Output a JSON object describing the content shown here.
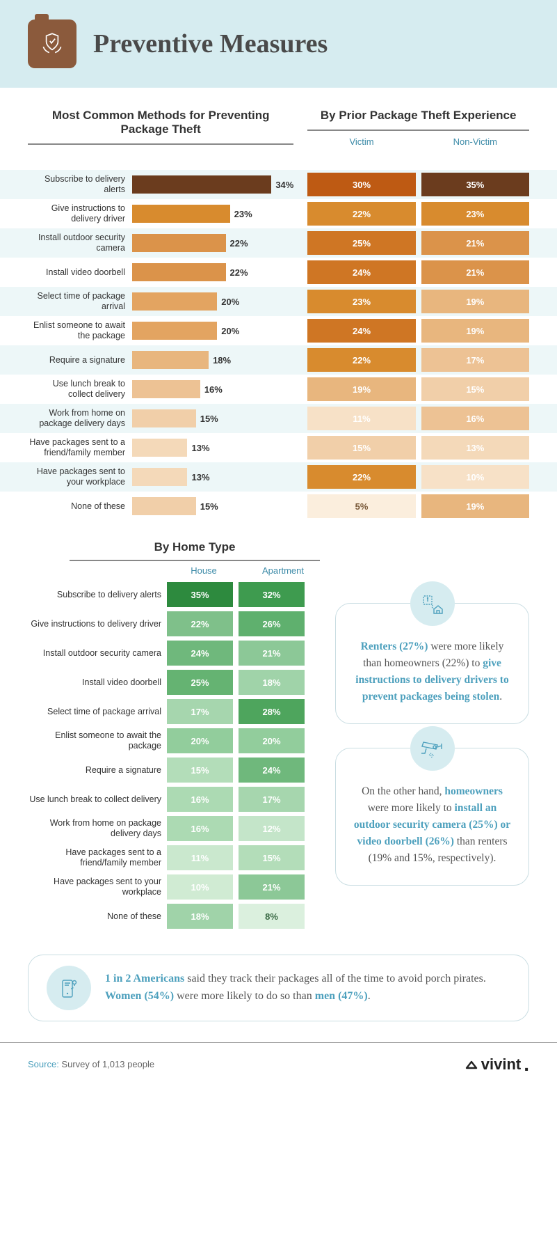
{
  "title": "Preventive Measures",
  "section1_title": "Most Common Methods for Preventing Package Theft",
  "section2_title": "By Prior Package Theft Experience",
  "sub_victim": "Victim",
  "sub_nonvictim": "Non-Victim",
  "bar_max_pct": 38,
  "rows": [
    {
      "label": "Subscribe to delivery alerts",
      "pct": 34,
      "bar_color": "#6b3c1e",
      "victim": 30,
      "victim_color": "#be5a13",
      "nonvictim": 35,
      "nonvictim_color": "#6b3c1e"
    },
    {
      "label": "Give instructions to delivery driver",
      "pct": 23,
      "bar_color": "#d88b2e",
      "victim": 22,
      "victim_color": "#d88b2e",
      "nonvictim": 23,
      "nonvictim_color": "#d88b2e"
    },
    {
      "label": "Install outdoor security camera",
      "pct": 22,
      "bar_color": "#db934a",
      "victim": 25,
      "victim_color": "#cf7624",
      "nonvictim": 21,
      "nonvictim_color": "#db934a"
    },
    {
      "label": "Install video doorbell",
      "pct": 22,
      "bar_color": "#db934a",
      "victim": 24,
      "victim_color": "#cf7624",
      "nonvictim": 21,
      "nonvictim_color": "#db934a"
    },
    {
      "label": "Select time of package arrival",
      "pct": 20,
      "bar_color": "#e3a461",
      "victim": 23,
      "victim_color": "#d88b2e",
      "nonvictim": 19,
      "nonvictim_color": "#e8b67e"
    },
    {
      "label": "Enlist someone to await the package",
      "pct": 20,
      "bar_color": "#e3a461",
      "victim": 24,
      "victim_color": "#cf7624",
      "nonvictim": 19,
      "nonvictim_color": "#e8b67e"
    },
    {
      "label": "Require a signature",
      "pct": 18,
      "bar_color": "#e8b67e",
      "victim": 22,
      "victim_color": "#d88b2e",
      "nonvictim": 17,
      "nonvictim_color": "#edc294"
    },
    {
      "label": "Use lunch break to collect delivery",
      "pct": 16,
      "bar_color": "#edc294",
      "victim": 19,
      "victim_color": "#e8b67e",
      "nonvictim": 15,
      "nonvictim_color": "#f1cfa9"
    },
    {
      "label": "Work from home on package delivery days",
      "pct": 15,
      "bar_color": "#f1cfa9",
      "victim": 11,
      "victim_color": "#f7e1c7",
      "nonvictim": 16,
      "nonvictim_color": "#edc294"
    },
    {
      "label": "Have packages sent to a friend/family member",
      "pct": 13,
      "bar_color": "#f4d9b9",
      "victim": 15,
      "victim_color": "#f1cfa9",
      "nonvictim": 13,
      "nonvictim_color": "#f4d9b9"
    },
    {
      "label": "Have packages sent to your workplace",
      "pct": 13,
      "bar_color": "#f4d9b9",
      "victim": 22,
      "victim_color": "#d88b2e",
      "nonvictim": 10,
      "nonvictim_color": "#f7e1c7"
    },
    {
      "label": "None of these",
      "pct": 15,
      "bar_color": "#f1cfa9",
      "victim": 5,
      "victim_color": "#fbeedd",
      "nonvictim": 19,
      "nonvictim_color": "#e8b67e"
    }
  ],
  "none_text_dark": true,
  "hometype_title": "By Home Type",
  "sub_house": "House",
  "sub_apt": "Apartment",
  "ht_rows": [
    {
      "label": "Subscribe to delivery alerts",
      "house": 35,
      "house_color": "#2d8a3e",
      "apt": 32,
      "apt_color": "#3e9b4f"
    },
    {
      "label": "Give instructions to delivery driver",
      "house": 22,
      "house_color": "#7fc08a",
      "apt": 26,
      "apt_color": "#5fb06e"
    },
    {
      "label": "Install outdoor security camera",
      "house": 24,
      "house_color": "#6fb87c",
      "apt": 21,
      "apt_color": "#8cc897"
    },
    {
      "label": "Install video doorbell",
      "house": 25,
      "house_color": "#65b372",
      "apt": 18,
      "apt_color": "#a0d3a9"
    },
    {
      "label": "Select time of package arrival",
      "house": 17,
      "house_color": "#a6d6ae",
      "apt": 28,
      "apt_color": "#4ea55d"
    },
    {
      "label": "Enlist someone to await the package",
      "house": 20,
      "house_color": "#92cd9c",
      "apt": 20,
      "apt_color": "#92cd9c"
    },
    {
      "label": "Require a signature",
      "house": 15,
      "house_color": "#b3ddb9",
      "apt": 24,
      "apt_color": "#6fb87c"
    },
    {
      "label": "Use lunch break to collect delivery",
      "house": 16,
      "house_color": "#acdab3",
      "apt": 17,
      "apt_color": "#a6d6ae"
    },
    {
      "label": "Work from home on package delivery days",
      "house": 16,
      "house_color": "#acdab3",
      "apt": 12,
      "apt_color": "#c4e5c9"
    },
    {
      "label": "Have packages sent to a friend/family member",
      "house": 11,
      "house_color": "#cae8ce",
      "apt": 15,
      "apt_color": "#b3ddb9"
    },
    {
      "label": "Have packages sent to your workplace",
      "house": 10,
      "house_color": "#d0ebd3",
      "apt": 21,
      "apt_color": "#8cc897"
    },
    {
      "label": "None of these",
      "house": 18,
      "house_color": "#a0d3a9",
      "apt": 8,
      "apt_color": "#dbf0de"
    }
  ],
  "callout1": {
    "t1": "Renters (27%)",
    "t2": " were more likely than homeowners (22%) to ",
    "t3": "give instructions to delivery drivers to prevent packages being stolen",
    "t4": "."
  },
  "callout2": {
    "t1": "On the other hand, ",
    "t2": "homeowners",
    "t3": " were more likely to ",
    "t4": "install an outdoor security camera (25%) or video doorbell (26%)",
    "t5": " than renters (19% and 15%, respectively)."
  },
  "callout3": {
    "t1": "1 in 2 Americans",
    "t2": " said they track their packages all of the time to avoid porch pirates. ",
    "t3": "Women (54%)",
    "t4": " were more likely to do so than ",
    "t5": "men (47%)",
    "t6": "."
  },
  "source_label": "Source:",
  "source_text": " Survey of 1,013 people",
  "logo_text": "vivint"
}
